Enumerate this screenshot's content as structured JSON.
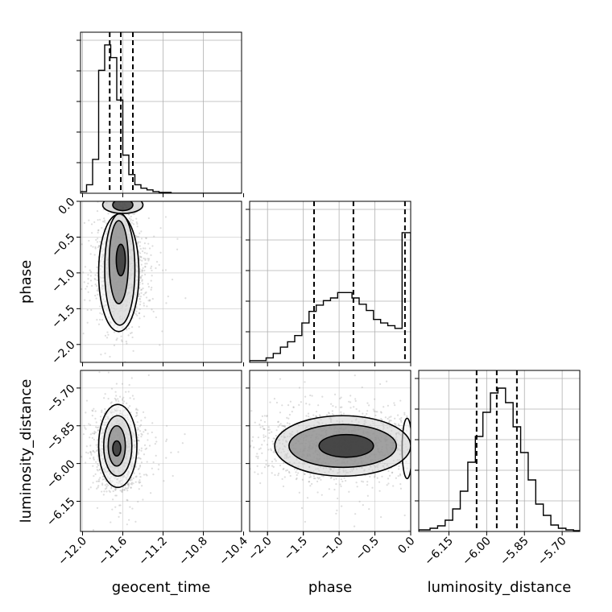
{
  "chart_data": {
    "type": "corner",
    "grid": true,
    "colors": {
      "hist": "#000000",
      "quantile": "#000000",
      "grid": "#b0b0b0",
      "points": "#9e9e9e"
    },
    "parameters": [
      {
        "name": "geocent_time",
        "label": "geocent_time",
        "range": [
          -12.02,
          -10.42
        ],
        "ticks": [
          -12.0,
          -11.6,
          -11.2,
          -10.8,
          -10.4
        ],
        "tick_labels": [
          "−12.0",
          "−11.6",
          "−11.2",
          "−10.8",
          "−10.4"
        ]
      },
      {
        "name": "phase",
        "label": "phase",
        "range": [
          -2.25,
          0.0
        ],
        "ticks": [
          -2.0,
          -1.5,
          -1.0,
          -0.5,
          0.0
        ],
        "tick_labels": [
          "−2.0",
          "−1.5",
          "−1.0",
          "−0.5",
          "0.0"
        ]
      },
      {
        "name": "luminosity_distance",
        "label": "luminosity_distance",
        "range": [
          -6.27,
          -5.63
        ],
        "ticks": [
          -6.15,
          -6.0,
          -5.85,
          -5.7
        ],
        "tick_labels": [
          "−6.15",
          "−6.00",
          "−5.85",
          "−5.70"
        ]
      }
    ],
    "histograms": [
      {
        "param": "geocent_time",
        "edges": [
          -12.02,
          -11.96,
          -11.9,
          -11.84,
          -11.78,
          -11.72,
          -11.66,
          -11.6,
          -11.54,
          -11.48,
          -11.42,
          -11.36,
          -11.3,
          -11.24,
          -11.18,
          -11.12,
          -11.06,
          -11.0,
          -10.94,
          -10.88,
          -10.82,
          -10.76,
          -10.7,
          -10.64,
          -10.58,
          -10.52,
          -10.46,
          -10.42
        ],
        "counts": [
          2,
          10,
          40,
          145,
          175,
          160,
          110,
          45,
          22,
          10,
          6,
          4,
          2,
          1,
          1,
          0,
          0,
          0,
          0,
          0,
          0,
          0,
          0,
          0,
          0,
          0,
          0
        ],
        "ymax": 190,
        "quantiles": [
          -11.73,
          -11.62,
          -11.5
        ]
      },
      {
        "param": "phase",
        "edges": [
          -2.25,
          -2.02,
          -1.92,
          -1.82,
          -1.72,
          -1.62,
          -1.52,
          -1.42,
          -1.32,
          -1.22,
          -1.12,
          -1.02,
          -0.92,
          -0.82,
          -0.72,
          -0.62,
          -0.52,
          -0.42,
          -0.32,
          -0.22,
          -0.12,
          0.0
        ],
        "counts": [
          2,
          5,
          10,
          17,
          23,
          30,
          44,
          57,
          64,
          69,
          72,
          78,
          78,
          72,
          65,
          58,
          48,
          44,
          41,
          38,
          145
        ],
        "ymax": 180,
        "quantiles": [
          -1.35,
          -0.8,
          -0.08
        ]
      },
      {
        "param": "luminosity_distance",
        "edges": [
          -6.27,
          -6.225,
          -6.195,
          -6.165,
          -6.135,
          -6.105,
          -6.075,
          -6.045,
          -6.015,
          -5.985,
          -5.955,
          -5.925,
          -5.895,
          -5.865,
          -5.835,
          -5.805,
          -5.775,
          -5.745,
          -5.715,
          -5.685,
          -5.655,
          -5.63
        ],
        "counts": [
          2,
          4,
          7,
          14,
          28,
          50,
          86,
          118,
          148,
          172,
          178,
          160,
          130,
          98,
          64,
          34,
          20,
          8,
          4,
          2,
          1
        ],
        "ymax": 200,
        "quantiles": [
          -6.04,
          -5.96,
          -5.88
        ]
      }
    ],
    "pairs": [
      {
        "x": "geocent_time",
        "y": "phase",
        "mean": [
          -11.63,
          -0.95
        ],
        "std": [
          0.12,
          0.38
        ],
        "contours": [
          {
            "level": 1,
            "center": [
              -11.62,
              -0.82
            ],
            "radii": [
              0.045,
              0.22
            ]
          },
          {
            "level": 2,
            "center": [
              -11.64,
              -0.85
            ],
            "radii": [
              0.095,
              0.58
            ]
          },
          {
            "level": 3,
            "center": [
              -11.63,
              -0.95
            ],
            "radii": [
              0.15,
              0.78
            ]
          },
          {
            "level": 4,
            "center": [
              -11.64,
              -1.0
            ],
            "radii": [
              0.2,
              0.82
            ]
          },
          {
            "level": 5,
            "center": [
              -11.6,
              -0.05
            ],
            "radii": [
              0.1,
              0.08
            ]
          },
          {
            "level": 6,
            "center": [
              -11.6,
              -0.05
            ],
            "radii": [
              0.2,
              0.12
            ]
          }
        ]
      },
      {
        "x": "geocent_time",
        "y": "luminosity_distance",
        "mean": [
          -11.66,
          -5.94
        ],
        "std": [
          0.11,
          0.08
        ],
        "contours": [
          {
            "level": 1,
            "center": [
              -11.66,
              -5.94
            ],
            "radii": [
              0.04,
              0.03
            ]
          },
          {
            "level": 2,
            "center": [
              -11.66,
              -5.93
            ],
            "radii": [
              0.085,
              0.08
            ]
          },
          {
            "level": 3,
            "center": [
              -11.65,
              -5.93
            ],
            "radii": [
              0.14,
              0.12
            ]
          },
          {
            "level": 4,
            "center": [
              -11.65,
              -5.93
            ],
            "radii": [
              0.19,
              0.165
            ]
          }
        ]
      },
      {
        "x": "phase",
        "y": "luminosity_distance",
        "mean": [
          -0.95,
          -5.93
        ],
        "std": [
          0.6,
          0.07
        ],
        "contours": [
          {
            "level": 1,
            "center": [
              -0.9,
              -5.93
            ],
            "radii": [
              0.38,
              0.045
            ]
          },
          {
            "level": 2,
            "center": [
              -0.95,
              -5.93
            ],
            "radii": [
              0.75,
              0.085
            ]
          },
          {
            "level": 3,
            "center": [
              -0.95,
              -5.93
            ],
            "radii": [
              0.95,
              0.12
            ]
          },
          {
            "level": 4,
            "center": [
              -0.05,
              -5.94
            ],
            "radii": [
              0.07,
              0.12
            ]
          }
        ]
      }
    ]
  }
}
